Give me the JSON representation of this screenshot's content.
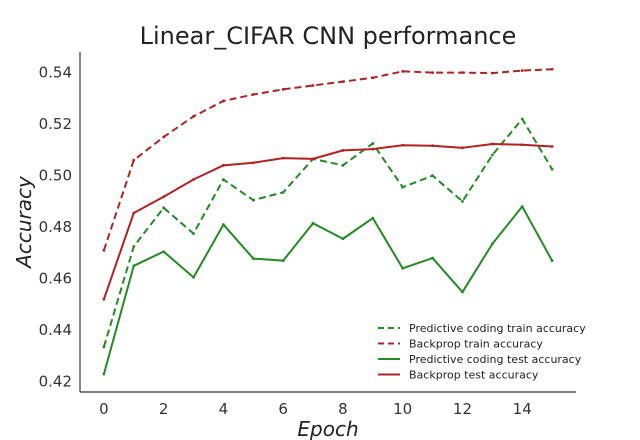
{
  "chart_data": {
    "type": "line",
    "title": "Linear_CIFAR CNN performance",
    "xlabel": "Epoch",
    "ylabel": "Accuracy",
    "x": [
      0,
      1,
      2,
      3,
      4,
      5,
      6,
      7,
      8,
      9,
      10,
      11,
      12,
      13,
      14,
      15
    ],
    "xlim": [
      -0.8,
      15.8
    ],
    "ylim": [
      0.416,
      0.548
    ],
    "xticks": [
      0,
      2,
      4,
      6,
      8,
      10,
      12,
      14
    ],
    "xtick_labels": [
      "0",
      "2",
      "4",
      "6",
      "8",
      "10",
      "12",
      "14"
    ],
    "yticks": [
      0.42,
      0.44,
      0.46,
      0.48,
      0.5,
      0.52,
      0.54
    ],
    "ytick_labels": [
      "0.42",
      "0.44",
      "0.46",
      "0.48",
      "0.50",
      "0.52",
      "0.54"
    ],
    "grid": false,
    "legend_position": "bottom-right",
    "series": [
      {
        "name": "Predictive coding train accuracy",
        "color": "#228b22",
        "dash": "dashed",
        "values": [
          0.4335,
          0.4725,
          0.4875,
          0.4775,
          0.4985,
          0.4905,
          0.4935,
          0.5065,
          0.504,
          0.5125,
          0.4955,
          0.5,
          0.49,
          0.508,
          0.522,
          0.5025
        ]
      },
      {
        "name": "Backprop train accuracy",
        "color": "#b22222",
        "dash": "dashed",
        "values": [
          0.471,
          0.506,
          0.515,
          0.523,
          0.529,
          0.5315,
          0.5335,
          0.535,
          0.5365,
          0.538,
          0.5405,
          0.54,
          0.54,
          0.5398,
          0.5408,
          0.5413
        ]
      },
      {
        "name": "Predictive coding test accuracy",
        "color": "#228b22",
        "dash": "solid",
        "values": [
          0.423,
          0.465,
          0.4705,
          0.4605,
          0.481,
          0.4678,
          0.467,
          0.4815,
          0.4755,
          0.4835,
          0.464,
          0.468,
          0.4548,
          0.4735,
          0.488,
          0.467
        ]
      },
      {
        "name": "Backprop test accuracy",
        "color": "#b22222",
        "dash": "solid",
        "values": [
          0.452,
          0.4855,
          0.4918,
          0.4985,
          0.504,
          0.505,
          0.5068,
          0.5065,
          0.5098,
          0.5103,
          0.5118,
          0.5116,
          0.5108,
          0.5123,
          0.512,
          0.5113
        ]
      }
    ]
  }
}
